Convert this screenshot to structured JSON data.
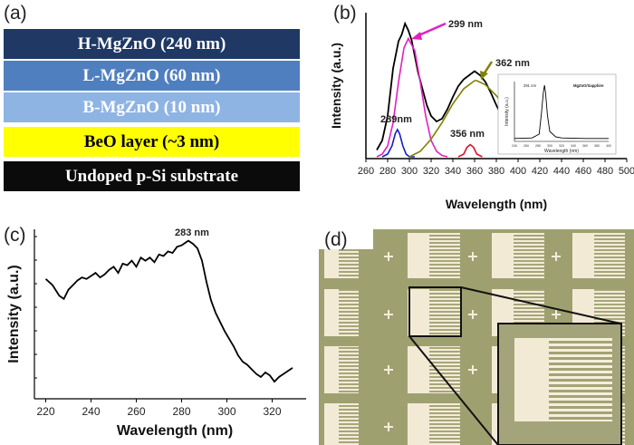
{
  "panels": {
    "a": {
      "label": "(a)",
      "layers": [
        {
          "text": "H-MgZnO (240 nm)",
          "color": "#1f3864",
          "text_color": "#ffffff"
        },
        {
          "text": "L-MgZnO (60 nm)",
          "color": "#4f7fbf",
          "text_color": "#ffffff"
        },
        {
          "text": "B-MgZnO (10 nm)",
          "color": "#8eb4e3",
          "text_color": "#ffffff"
        },
        {
          "text": "BeO layer (~3 nm)",
          "color": "#ffff00",
          "text_color": "#000000"
        },
        {
          "text": "Undoped p-Si substrate",
          "color": "#0b0b0b",
          "text_color": "#ffffff"
        }
      ]
    },
    "b": {
      "label": "(b)"
    },
    "c": {
      "label": "(c)"
    },
    "d": {
      "label": "(d)"
    }
  },
  "chart_data": [
    {
      "panel": "b",
      "type": "line",
      "xlabel": "Wavelength (nm)",
      "ylabel": "Intensity (a.u.)",
      "xlim": [
        260,
        500
      ],
      "xticks": [
        260,
        280,
        300,
        320,
        340,
        360,
        380,
        400,
        420,
        440,
        460,
        480,
        500
      ],
      "colors": {
        "measured": "#000000",
        "g299": "#e020c0",
        "g289": "#1020c0",
        "g356": "#e01030",
        "g362": "#808000",
        "arrow299": "#e020c0",
        "arrow362": "#808000"
      },
      "series": [
        {
          "x": [
            270,
            275,
            280,
            285,
            290,
            293,
            296,
            299,
            302,
            305,
            308,
            312,
            316,
            320,
            325,
            330,
            335,
            340,
            345,
            350,
            355,
            360,
            365,
            370,
            375,
            380,
            385,
            390
          ],
          "y": [
            0.05,
            0.12,
            0.3,
            0.65,
            0.85,
            0.9,
            0.98,
            0.93,
            0.86,
            0.74,
            0.62,
            0.5,
            0.38,
            0.3,
            0.26,
            0.28,
            0.35,
            0.44,
            0.52,
            0.57,
            0.6,
            0.63,
            0.6,
            0.55,
            0.47,
            0.38,
            0.3,
            0.2
          ]
        },
        {
          "x": [
            270,
            275,
            280,
            285,
            290,
            295,
            299,
            305,
            310,
            315,
            320,
            325,
            330,
            335
          ],
          "y": [
            0,
            0.02,
            0.08,
            0.25,
            0.55,
            0.8,
            0.87,
            0.78,
            0.55,
            0.3,
            0.12,
            0.04,
            0.01,
            0
          ]
        },
        {
          "x": [
            275,
            280,
            284,
            287,
            289,
            291,
            294,
            297,
            300,
            305
          ],
          "y": [
            0,
            0.02,
            0.08,
            0.17,
            0.2,
            0.17,
            0.08,
            0.02,
            0,
            0
          ]
        },
        {
          "x": [
            345,
            350,
            353,
            356,
            359,
            362,
            367
          ],
          "y": [
            0,
            0.02,
            0.07,
            0.09,
            0.07,
            0.02,
            0
          ]
        },
        {
          "x": [
            300,
            310,
            320,
            330,
            340,
            350,
            360,
            362,
            370,
            380,
            390,
            400
          ],
          "y": [
            0,
            0.04,
            0.13,
            0.25,
            0.39,
            0.5,
            0.56,
            0.56,
            0.53,
            0.45,
            0.35,
            0.23
          ]
        }
      ],
      "annotations": [
        "299 nm",
        "362 nm",
        "289nm",
        "356 nm"
      ],
      "inset": {
        "legend": "MgZnO/Sapphire",
        "peak_label": "291 nm",
        "xlabel": "Wavelength (nm)",
        "ylabel": "Intensity (a.u.)",
        "xlim": [
          240,
          400
        ],
        "xticks": [
          240,
          260,
          280,
          300,
          320,
          340,
          360,
          380,
          400
        ],
        "series": [
          {
            "x": [
              240,
              270,
              282,
              286,
              289,
              291,
              293,
              296,
              300,
              310,
              320,
              360,
              400
            ],
            "y": [
              0.02,
              0.03,
              0.1,
              0.5,
              0.85,
              1,
              0.85,
              0.45,
              0.15,
              0.05,
              0.03,
              0.02,
              0.02
            ]
          }
        ]
      }
    },
    {
      "panel": "c",
      "type": "line",
      "xlabel": "Wavelength (nm)",
      "ylabel": "Intensity (a.u.)",
      "xlim": [
        215,
        335
      ],
      "xticks": [
        220,
        240,
        260,
        280,
        300,
        320
      ],
      "annotations": [
        "283 nm"
      ],
      "series": [
        {
          "x": [
            220,
            223,
            226,
            228,
            230,
            232,
            234,
            236,
            238,
            240,
            242,
            244,
            246,
            248,
            250,
            252,
            254,
            256,
            258,
            260,
            262,
            264,
            266,
            268,
            270,
            272,
            274,
            276,
            278,
            280,
            282,
            283,
            285,
            287,
            289,
            291,
            293,
            295,
            297,
            299,
            301,
            303,
            305,
            307,
            309,
            311,
            313,
            315,
            317,
            319,
            321,
            323,
            325,
            327,
            329
          ],
          "y": [
            0.64,
            0.6,
            0.53,
            0.51,
            0.57,
            0.6,
            0.63,
            0.65,
            0.64,
            0.66,
            0.68,
            0.65,
            0.67,
            0.7,
            0.72,
            0.68,
            0.74,
            0.73,
            0.76,
            0.72,
            0.78,
            0.76,
            0.78,
            0.75,
            0.8,
            0.79,
            0.82,
            0.81,
            0.85,
            0.86,
            0.88,
            0.89,
            0.87,
            0.84,
            0.76,
            0.62,
            0.5,
            0.42,
            0.36,
            0.3,
            0.25,
            0.2,
            0.14,
            0.1,
            0.08,
            0.05,
            0.02,
            0,
            0.03,
            0.01,
            -0.03,
            0,
            0.02,
            0.04,
            0.06
          ]
        }
      ]
    }
  ]
}
